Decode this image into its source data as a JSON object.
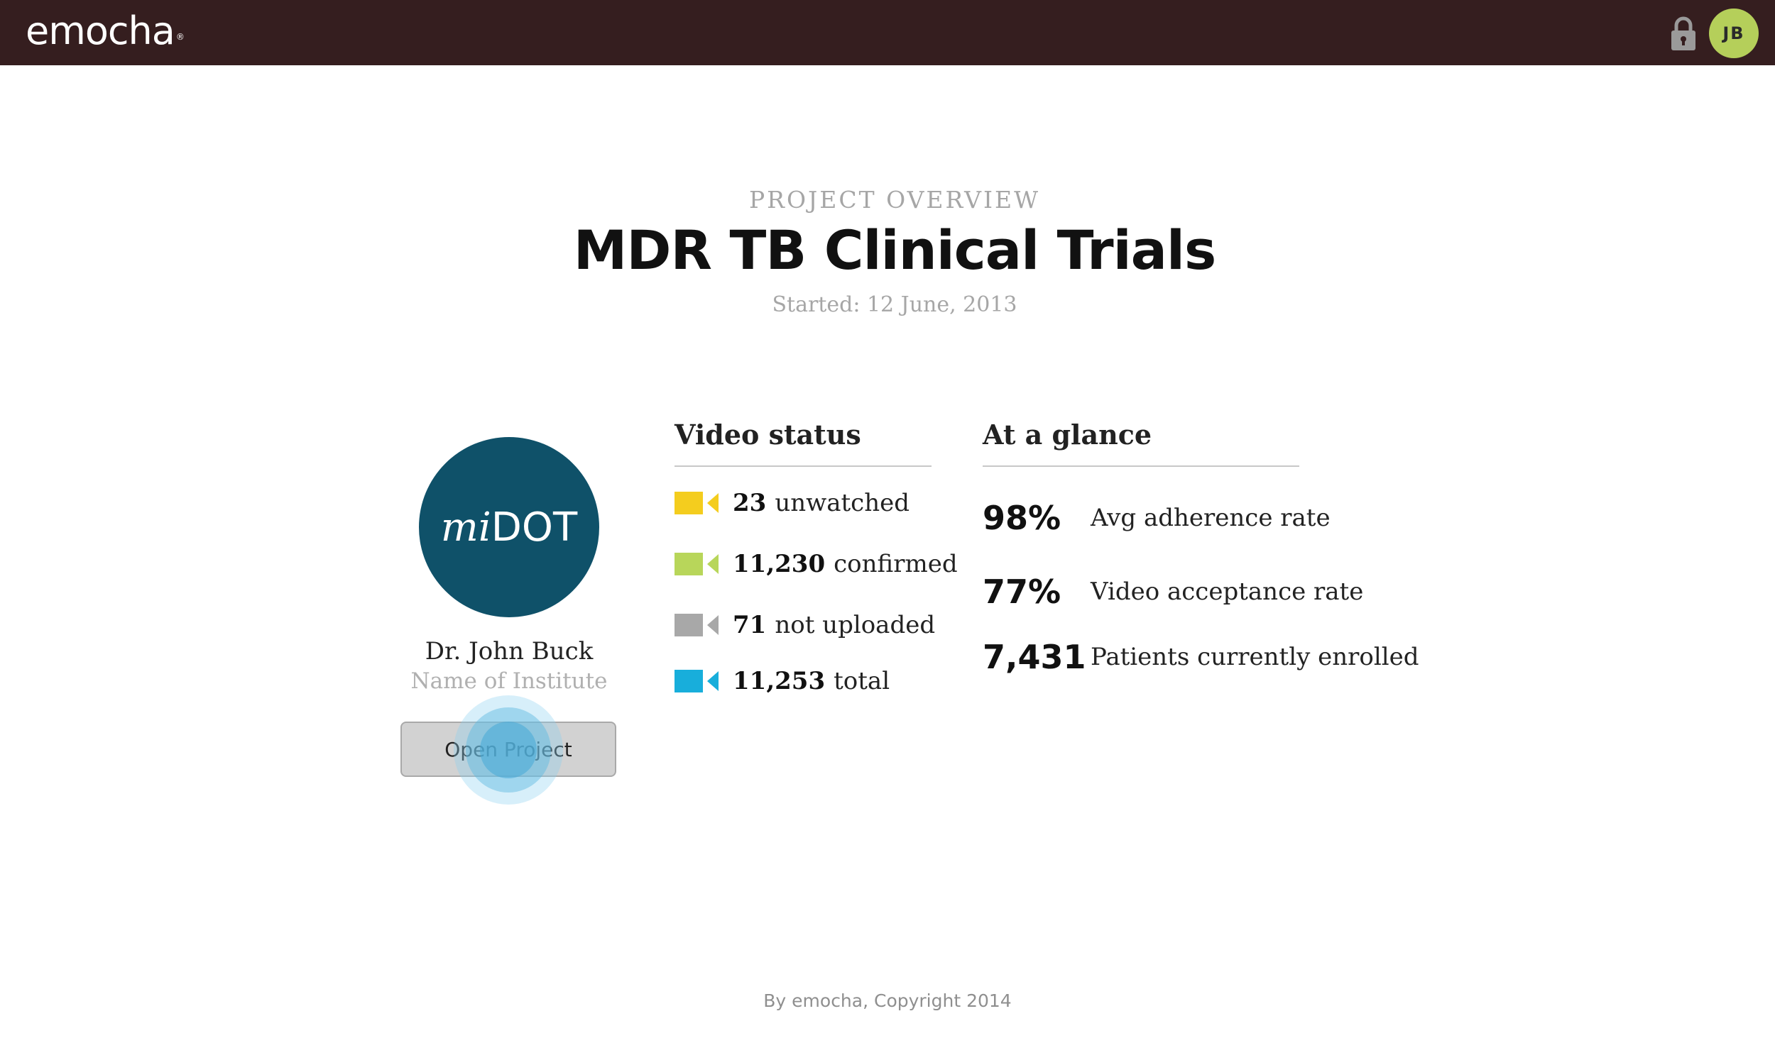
{
  "topbar": {
    "logo": "emocha",
    "logo_mark": "®",
    "lock_icon": "lock-icon",
    "avatar_initials": "JB",
    "colors": {
      "background": "#351e1f",
      "avatar": "#b5cf5a"
    }
  },
  "header": {
    "eyebrow": "PROJECT OVERVIEW",
    "title": "MDR TB Clinical Trials",
    "started": "Started: 12 June, 2013"
  },
  "project": {
    "logo_prefix": "mi",
    "logo_suffix": "DOT",
    "logo_color": "#0f5169",
    "owner": "Dr. John Buck",
    "institute": "Name of Institute",
    "open_button": "Open Project"
  },
  "video_status": {
    "heading": "Video status",
    "items": [
      {
        "count": "23",
        "label": "unwatched",
        "color": "#f4cd1e",
        "icon": "video-camera-icon"
      },
      {
        "count": "11,230",
        "label": "confirmed",
        "color": "#b8d65a",
        "icon": "video-camera-icon"
      },
      {
        "count": "71",
        "label": "not uploaded",
        "color": "#a8a8a8",
        "icon": "video-camera-icon"
      },
      {
        "count": "11,253",
        "label": "total",
        "color": "#18aedb",
        "icon": "video-camera-icon"
      }
    ]
  },
  "at_a_glance": {
    "heading": "At a glance",
    "items": [
      {
        "value": "98%",
        "label": "Avg adherence rate"
      },
      {
        "value": "77%",
        "label": "Video acceptance rate"
      },
      {
        "value": "7,431",
        "label": "Patients currently enrolled"
      }
    ]
  },
  "footer": {
    "text": "By emocha, Copyright 2014"
  }
}
